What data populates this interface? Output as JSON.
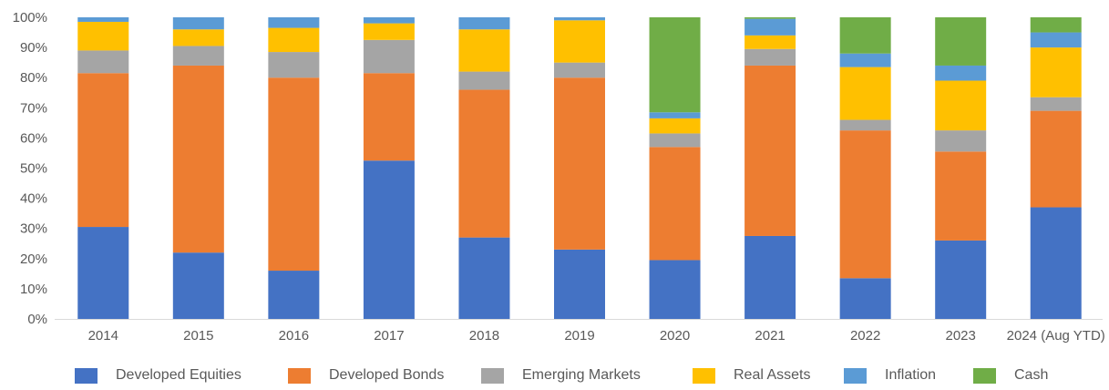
{
  "chart_data": {
    "type": "bar",
    "stacked": true,
    "title": "",
    "xlabel": "",
    "ylabel": "",
    "ylim": [
      0,
      100
    ],
    "y_ticks": [
      "0%",
      "10%",
      "20%",
      "30%",
      "40%",
      "50%",
      "60%",
      "70%",
      "80%",
      "90%",
      "100%"
    ],
    "grid": false,
    "legend_position": "bottom",
    "categories": [
      "2014",
      "2015",
      "2016",
      "2017",
      "2018",
      "2019",
      "2020",
      "2021",
      "2022",
      "2023",
      "2024 (Aug YTD)"
    ],
    "series": [
      {
        "name": "Developed Equities",
        "color": "#4472C4",
        "values": [
          30.5,
          22,
          16,
          52.5,
          27,
          23,
          19.5,
          27.5,
          13.5,
          26,
          37
        ]
      },
      {
        "name": "Developed Bonds",
        "color": "#ED7D31",
        "values": [
          51,
          62,
          64,
          29,
          49,
          57,
          37.5,
          56.5,
          49,
          29.5,
          32
        ]
      },
      {
        "name": "Emerging Markets",
        "color": "#A5A5A5",
        "values": [
          7.5,
          6.5,
          8.5,
          11,
          6,
          5,
          4.5,
          5.5,
          3.5,
          7,
          4.5
        ]
      },
      {
        "name": "Real Assets",
        "color": "#FFC000",
        "values": [
          9.5,
          5.5,
          8,
          5.5,
          14,
          14,
          5,
          4.5,
          17.5,
          16.5,
          16.5
        ]
      },
      {
        "name": "Inflation",
        "color": "#5B9BD5",
        "values": [
          1.5,
          4,
          3.5,
          2,
          4,
          1,
          2,
          5.5,
          4.5,
          5,
          5
        ]
      },
      {
        "name": "Cash",
        "color": "#70AD47",
        "values": [
          0,
          0,
          0,
          0,
          0,
          0,
          31.5,
          0.5,
          12,
          16,
          5
        ]
      }
    ]
  }
}
